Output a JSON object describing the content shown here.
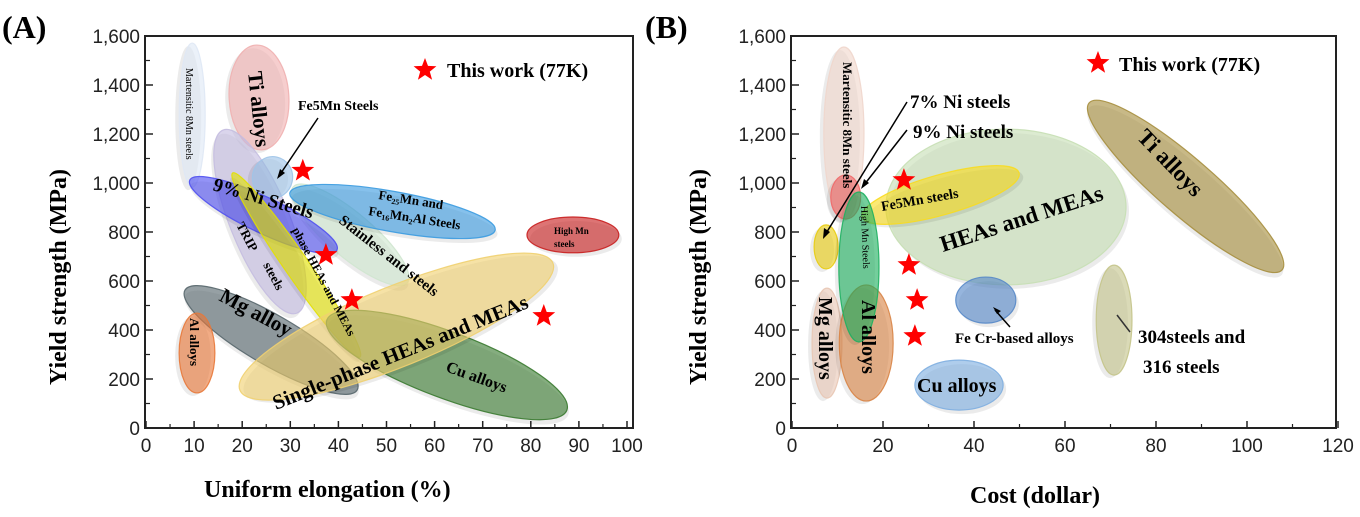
{
  "chart_data": [
    {
      "type": "scatter",
      "panel_label": "(A)",
      "xlabel": "Uniform elongation (%)",
      "ylabel": "Yield strength (MPa)",
      "xlim": [
        0,
        100
      ],
      "ylim": [
        0,
        1600
      ],
      "xticks": [
        "0",
        "10",
        "20",
        "30",
        "40",
        "50",
        "60",
        "70",
        "80",
        "90",
        "100"
      ],
      "yticks": [
        "0",
        "200",
        "400",
        "600",
        "800",
        "1,000",
        "1,200",
        "1,400",
        "1,600"
      ],
      "legend": {
        "label": "This work (77K)",
        "marker": "red-star",
        "placement": "top-right"
      },
      "this_work": {
        "color": "#ff0000",
        "points": [
          [
            32.6,
            1050
          ],
          [
            37.4,
            706
          ],
          [
            42.8,
            522
          ],
          [
            82.7,
            457
          ]
        ]
      },
      "regions": [
        {
          "name": "Martensitic 8Mn steels",
          "color": "#dfe8f5",
          "p1": [
            9.6,
            1571
          ],
          "p2": [
            9.6,
            983
          ],
          "spread": 53
        },
        {
          "name": "Ti alloys",
          "color": "#f0b0b0",
          "p1": [
            22.9,
            1563
          ],
          "p2": [
            24.1,
            1135
          ],
          "spread": 122
        },
        {
          "name": "TRIP steels",
          "color": "#c4bce0",
          "p1": [
            16,
            1216
          ],
          "p2": [
            31.4,
            469
          ],
          "spread": 122
        },
        {
          "name": "Stainless and steels",
          "color": "#cfe6cf",
          "p1": [
            30.6,
            984
          ],
          "p2": [
            54.3,
            592
          ],
          "spread": 90
        },
        {
          "name": "Fe5Mn Steels",
          "color": "#9ec4e8",
          "p1": [
            27.2,
            1106
          ],
          "p2": [
            25.4,
            939
          ],
          "spread": 82
        },
        {
          "name": "Fe25Mn and Fe16Mn2Al Steels",
          "color": "#3b9be0",
          "p1": [
            29.9,
            959
          ],
          "p2": [
            72.6,
            808
          ],
          "spread": 82
        },
        {
          "name": "9% Ni Steels",
          "color": "#5050f0",
          "p1": [
            9.1,
            1012
          ],
          "p2": [
            39.7,
            727
          ],
          "spread": 73
        },
        {
          "name": "Multi-phase HEAs and MEAs",
          "color": "#e2e000",
          "p1": [
            18,
            1041
          ],
          "p2": [
            44.5,
            290
          ],
          "spread": 49
        },
        {
          "name": "High Mn steels",
          "color": "#c81e1e",
          "p1": [
            79.2,
            788
          ],
          "p2": [
            98.3,
            788
          ],
          "spread": 73
        },
        {
          "name": "Mg alloy",
          "color": "#56666c",
          "p1": [
            8.1,
            563
          ],
          "p2": [
            43.9,
            155
          ],
          "spread": 102
        },
        {
          "name": "Al alloys",
          "color": "#e87838",
          "p1": [
            10.6,
            469
          ],
          "p2": [
            10.6,
            143
          ],
          "spread": 73
        },
        {
          "name": "Cu alloys",
          "color": "#3a7a30",
          "p1": [
            37.6,
            441
          ],
          "p2": [
            87.5,
            73
          ],
          "spread": 135
        },
        {
          "name": "Single-phase HEAs and MEAs",
          "color": "#f0d070",
          "p1": [
            19.5,
            155
          ],
          "p2": [
            84.6,
            673
          ],
          "spread": 163
        }
      ],
      "labels": {
        "mart": "Martensitic 8Mn steels",
        "ti": "Ti alloys",
        "fe5mn": "Fe5Mn Steels",
        "ni9": "9% Ni Steels",
        "fe25_l1": "Fe₂₅Mn and",
        "fe25_l2": "Fe₁₆Mn₂Al Steels",
        "stainless": "Stainless and steels",
        "trip1": "TRIP",
        "trip2": "steels",
        "multi": "phase HEAs and MEAs",
        "highmn1": "High Mn",
        "highmn2": "steels",
        "mg": "Mg    alloy",
        "al": "Al alloys",
        "single": "Single-phase  HEAs and MEAs",
        "cu": "Cu alloys"
      }
    },
    {
      "type": "scatter",
      "panel_label": "(B)",
      "xlabel": "Cost (dollar)",
      "ylabel": "Yield strength (MPa)",
      "xlim": [
        0,
        120
      ],
      "ylim": [
        0,
        1600
      ],
      "xticks": [
        "0",
        "20",
        "40",
        "60",
        "80",
        "100",
        "120"
      ],
      "yticks": [
        "0",
        "200",
        "400",
        "600",
        "800",
        "1,000",
        "1,200",
        "1,400",
        "1,600"
      ],
      "legend": {
        "label": "This work (77K)",
        "marker": "red-star",
        "placement": "top-right"
      },
      "this_work": {
        "color": "#ff0000",
        "points": [
          [
            24.6,
            1012
          ],
          [
            25.7,
            665
          ],
          [
            27.5,
            522
          ],
          [
            27,
            375
          ]
        ]
      },
      "regions": [
        {
          "name": "HEAs and MEAs",
          "color": "#c6dfb4",
          "p1": [
            20.6,
            902
          ],
          "p2": [
            73.4,
            902
          ],
          "spread": 318
        },
        {
          "name": "Martensitic 8Mn steels",
          "color": "#f0d6cc",
          "p1": [
            11.4,
            1555
          ],
          "p2": [
            11.4,
            849
          ],
          "spread": 82
        },
        {
          "name": "7% Ni steels",
          "color": "#f06868",
          "p1": [
            11.8,
            1033
          ],
          "p2": [
            11.8,
            853
          ],
          "spread": 61
        },
        {
          "name": "Fe5Mn steels",
          "color": "#f8dc20",
          "p1": [
            15.4,
            861
          ],
          "p2": [
            49.9,
            1041
          ],
          "spread": 82
        },
        {
          "name": "9% Ni steels",
          "color": "#e8cc10",
          "p1": [
            7.5,
            829
          ],
          "p2": [
            7.5,
            649
          ],
          "spread": 49
        },
        {
          "name": "Ti alloys",
          "color": "#a68e3e",
          "p1": [
            65.3,
            1327
          ],
          "p2": [
            107.7,
            645
          ],
          "spread": 114
        },
        {
          "name": "Mg alloys",
          "color": "#e8c6b4",
          "p1": [
            7.7,
            571
          ],
          "p2": [
            7.7,
            122
          ],
          "spread": 61
        },
        {
          "name": "Al alloys",
          "color": "#d88446",
          "p1": [
            16.3,
            584
          ],
          "p2": [
            16.3,
            110
          ],
          "spread": 110
        },
        {
          "name": "High Mn Steels",
          "color": "#1eb060",
          "p1": [
            14.7,
            963
          ],
          "p2": [
            14.7,
            351
          ],
          "spread": 82
        },
        {
          "name": "Fe Cr-based alloys",
          "color": "#5688c8",
          "p1": [
            36,
            522
          ],
          "p2": [
            49.2,
            522
          ],
          "spread": 94
        },
        {
          "name": "Cu alloys",
          "color": "#7eaee0",
          "p1": [
            27,
            175
          ],
          "p2": [
            46.4,
            175
          ],
          "spread": 102
        },
        {
          "name": "304steels and 316 steels",
          "color": "#c4c48a",
          "p1": [
            70.8,
            665
          ],
          "p2": [
            70.8,
            216
          ],
          "spread": 73
        }
      ],
      "labels": {
        "mart": "Martensitic 8Mn steels",
        "ni7": "7% Ni steels",
        "ni9": "9% Ni   steels",
        "fe5mn": "Fe5Mn steels",
        "hea": "HEAs and MEAs",
        "ti": "Ti alloys",
        "highmn": "High Mn Steels",
        "mg": "Mg alloys",
        "al": "Al alloys",
        "fecr": "Fe Cr-based alloys",
        "cu": "Cu alloys",
        "ss1": "304steels and",
        "ss2": "316 steels"
      }
    }
  ]
}
